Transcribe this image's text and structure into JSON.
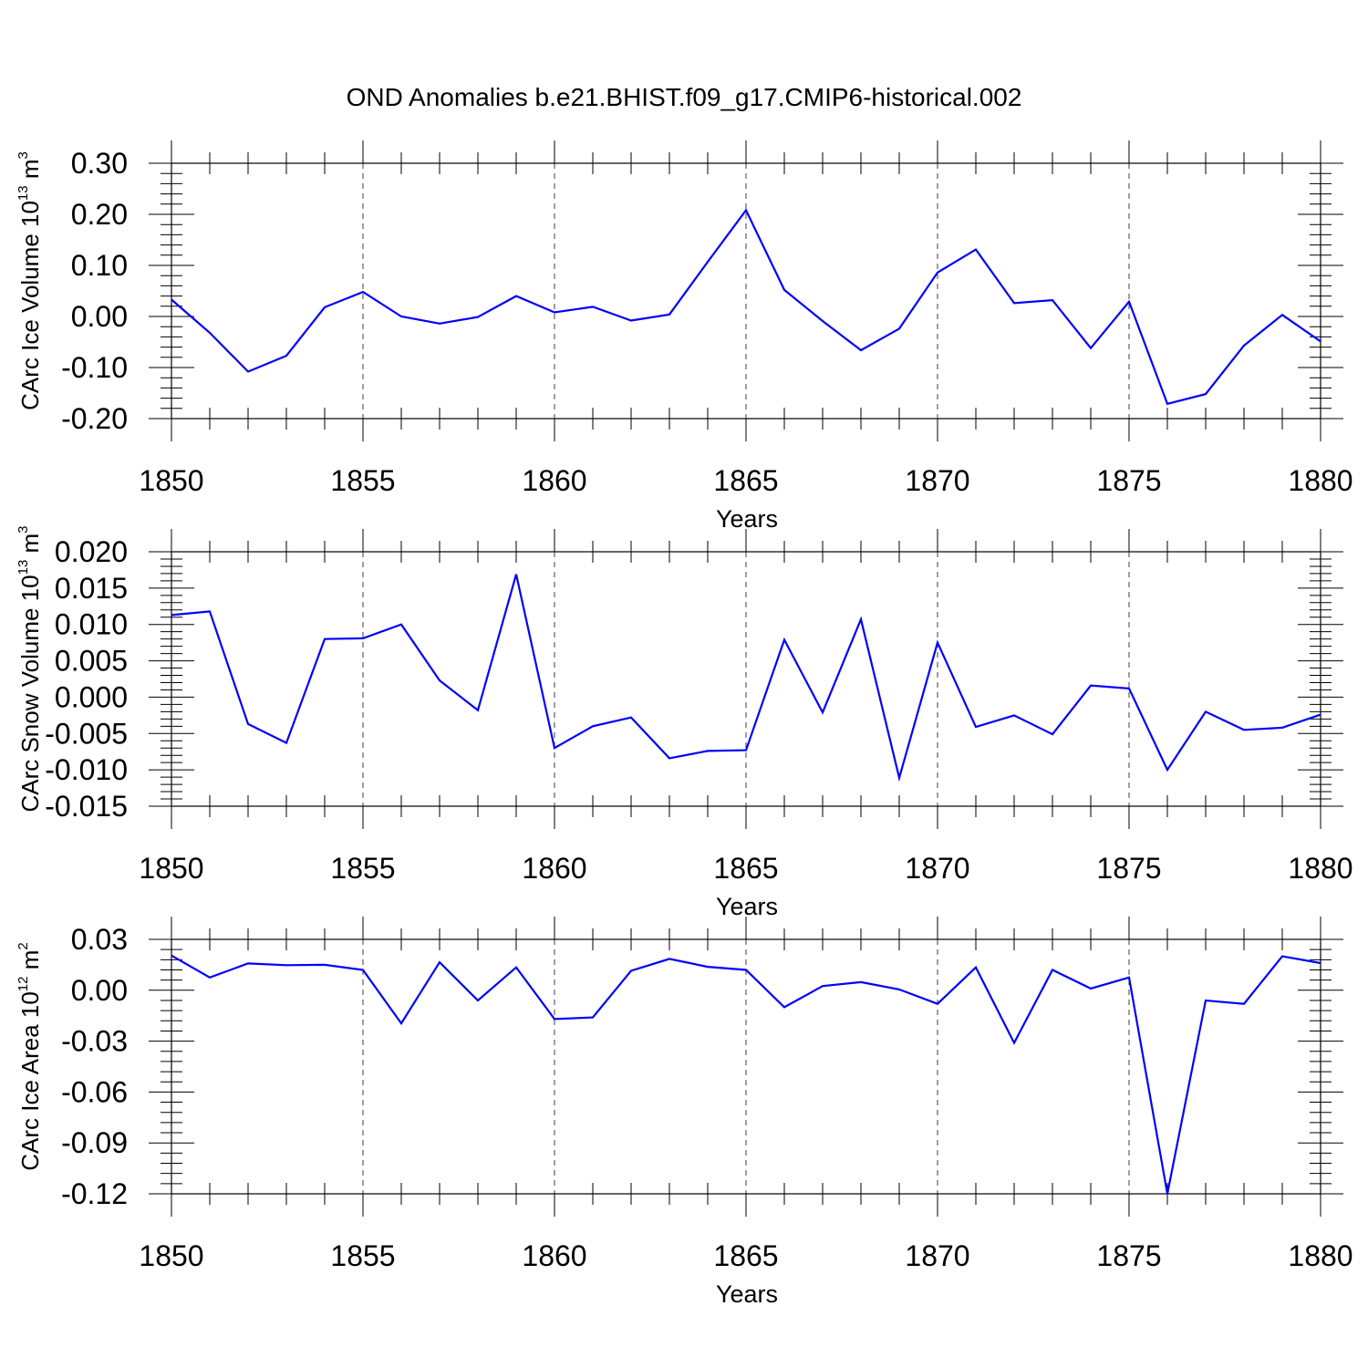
{
  "figure": {
    "title": "OND Anomalies b.e21.BHIST.f09_g17.CMIP6-historical.002"
  },
  "chart_data": [
    {
      "type": "line",
      "title": "OND Anomalies b.e21.BHIST.f09_g17.CMIP6-historical.002",
      "ylabel_main": "CArc Ice Volume 10",
      "ylabel_exp": "13",
      "ylabel_unit": "m",
      "ylabel_unit_exp": "3",
      "xlabel": "Years",
      "xlim": [
        1850,
        1880
      ],
      "ylim": [
        -0.2,
        0.3
      ],
      "grid": "dashed vertical at major x ticks",
      "line_color": "#0000ff",
      "x_ticks": [
        1850,
        1855,
        1860,
        1865,
        1870,
        1875,
        1880
      ],
      "x_tick_labels": [
        "1850",
        "1855",
        "1860",
        "1865",
        "1870",
        "1875",
        "1880"
      ],
      "y_ticks": [
        -0.2,
        -0.1,
        0.0,
        0.1,
        0.2,
        0.3
      ],
      "y_tick_labels": [
        "-0.20",
        "-0.10",
        "0.00",
        "0.10",
        "0.20",
        "0.30"
      ],
      "x": [
        1850,
        1851,
        1852,
        1853,
        1854,
        1855,
        1856,
        1857,
        1858,
        1859,
        1860,
        1861,
        1862,
        1863,
        1864,
        1865,
        1866,
        1867,
        1868,
        1869,
        1870,
        1871,
        1872,
        1873,
        1874,
        1875,
        1876,
        1877,
        1878,
        1879,
        1880
      ],
      "values": [
        0.033,
        -0.032,
        -0.108,
        -0.077,
        0.018,
        0.048,
        0.0,
        -0.014,
        -0.001,
        0.04,
        0.008,
        0.019,
        -0.008,
        0.004,
        0.107,
        0.208,
        0.052,
        -0.009,
        -0.066,
        -0.024,
        0.086,
        0.131,
        0.026,
        0.032,
        -0.062,
        0.029,
        -0.171,
        -0.152,
        -0.057,
        0.003,
        -0.049
      ]
    },
    {
      "type": "line",
      "ylabel_main": "CArc Snow Volume 10",
      "ylabel_exp": "13",
      "ylabel_unit": "m",
      "ylabel_unit_exp": "3",
      "xlabel": "Years",
      "xlim": [
        1850,
        1880
      ],
      "ylim": [
        -0.015,
        0.02
      ],
      "grid": "dashed vertical at major x ticks",
      "line_color": "#0000ff",
      "x_ticks": [
        1850,
        1855,
        1860,
        1865,
        1870,
        1875,
        1880
      ],
      "x_tick_labels": [
        "1850",
        "1855",
        "1860",
        "1865",
        "1870",
        "1875",
        "1880"
      ],
      "y_ticks": [
        -0.015,
        -0.01,
        -0.005,
        0.0,
        0.005,
        0.01,
        0.015,
        0.02
      ],
      "y_tick_labels": [
        "-0.015",
        "-0.010",
        "-0.005",
        "0.000",
        "0.005",
        "0.010",
        "0.015",
        "0.020"
      ],
      "x": [
        1850,
        1851,
        1852,
        1853,
        1854,
        1855,
        1856,
        1857,
        1858,
        1859,
        1860,
        1861,
        1862,
        1863,
        1864,
        1865,
        1866,
        1867,
        1868,
        1869,
        1870,
        1871,
        1872,
        1873,
        1874,
        1875,
        1876,
        1877,
        1878,
        1879,
        1880
      ],
      "values": [
        0.0113,
        0.0118,
        -0.0037,
        -0.0063,
        0.008,
        0.0081,
        0.01,
        0.0023,
        -0.0018,
        0.0169,
        -0.007,
        -0.004,
        -0.0028,
        -0.0084,
        -0.0074,
        -0.0073,
        0.0079,
        -0.0021,
        0.0107,
        -0.0111,
        0.0075,
        -0.0041,
        -0.0025,
        -0.0051,
        0.0016,
        0.0012,
        -0.01,
        -0.002,
        -0.0045,
        -0.0042,
        -0.0024
      ]
    },
    {
      "type": "line",
      "ylabel_main": "CArc Ice Area 10",
      "ylabel_exp": "12",
      "ylabel_unit": "m",
      "ylabel_unit_exp": "2",
      "xlabel": "Years",
      "xlim": [
        1850,
        1880
      ],
      "ylim": [
        -0.12,
        0.03
      ],
      "grid": "dashed vertical at major x ticks",
      "line_color": "#0000ff",
      "x_ticks": [
        1850,
        1855,
        1860,
        1865,
        1870,
        1875,
        1880
      ],
      "x_tick_labels": [
        "1850",
        "1855",
        "1860",
        "1865",
        "1870",
        "1875",
        "1880"
      ],
      "y_ticks": [
        -0.12,
        -0.09,
        -0.06,
        -0.03,
        0.0,
        0.03
      ],
      "y_tick_labels": [
        "-0.12",
        "-0.09",
        "-0.06",
        "-0.03",
        "0.00",
        "0.03"
      ],
      "x": [
        1850,
        1851,
        1852,
        1853,
        1854,
        1855,
        1856,
        1857,
        1858,
        1859,
        1860,
        1861,
        1862,
        1863,
        1864,
        1865,
        1866,
        1867,
        1868,
        1869,
        1870,
        1871,
        1872,
        1873,
        1874,
        1875,
        1876,
        1877,
        1878,
        1879,
        1880
      ],
      "values": [
        0.0205,
        0.0075,
        0.0158,
        0.0148,
        0.015,
        0.012,
        -0.0195,
        0.0165,
        -0.006,
        0.0135,
        -0.017,
        -0.016,
        0.0115,
        0.0185,
        0.0138,
        0.012,
        -0.01,
        0.0025,
        0.0048,
        0.0005,
        -0.008,
        0.0135,
        -0.031,
        0.012,
        0.001,
        0.0075,
        -0.12,
        -0.006,
        -0.008,
        0.02,
        0.016
      ]
    }
  ]
}
